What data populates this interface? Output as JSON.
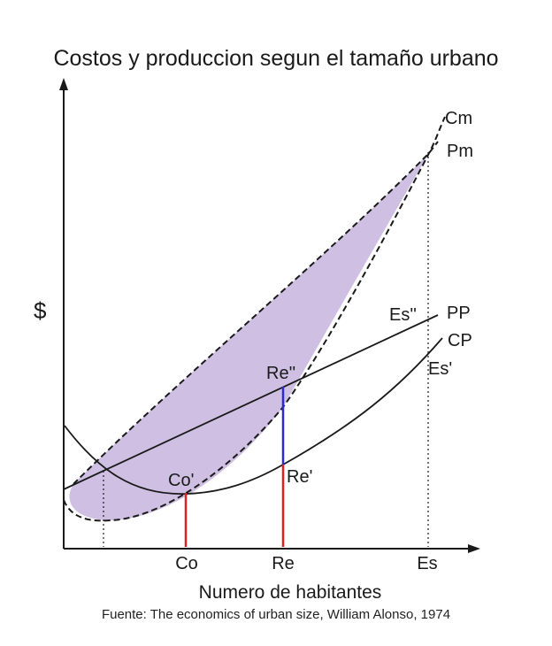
{
  "title": "Costos y produccion segun el tamaño urbano",
  "y_label": "$",
  "x_label": "Numero de habitantes",
  "source": "Fuente: The economics of urban size, William Alonso, 1974",
  "x_ticks": {
    "co": "Co",
    "re": "Re",
    "es": "Es"
  },
  "curves": {
    "cm": "Cm",
    "pm": "Pm",
    "pp": "PP",
    "cp": "CP"
  },
  "points": {
    "co_prime": "Co'",
    "re_prime": "Re'",
    "re_double": "Re''",
    "es_prime": "Es'",
    "es_double": "Es''"
  },
  "colors": {
    "shade": "#cfc0e3",
    "red": "#e02020",
    "blue": "#2a2ad8",
    "ink": "#1a1a1a"
  }
}
